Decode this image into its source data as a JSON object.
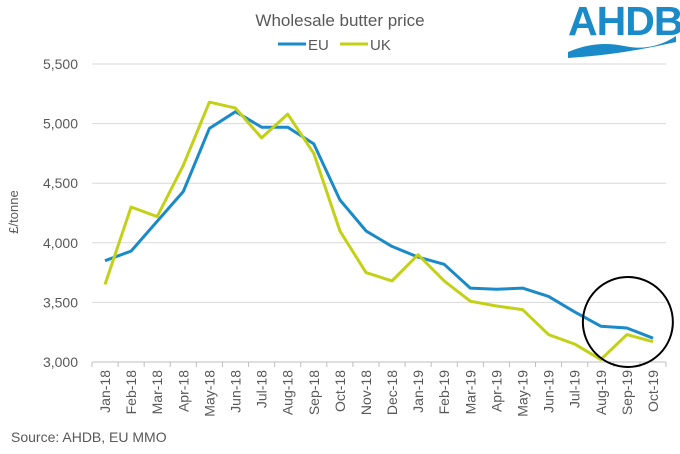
{
  "source_note": "Source: AHDB, EU MMO",
  "logo": {
    "text": "AHDB",
    "color": "#1a8bc8",
    "icon": "ahdb-wave-logo"
  },
  "chart_data": {
    "type": "line",
    "title": "Wholesale butter price",
    "xlabel": "",
    "ylabel": "£/tonne",
    "ylim": [
      3000,
      5500
    ],
    "yticks": [
      3000,
      3500,
      4000,
      4500,
      5000,
      5500
    ],
    "ytick_labels": [
      "3,000",
      "3,500",
      "4,000",
      "4,500",
      "5,000",
      "5,500"
    ],
    "grid": true,
    "legend_position": "top-center",
    "categories": [
      "Jan-18",
      "Feb-18",
      "Mar-18",
      "Apr-18",
      "May-18",
      "Jun-18",
      "Jul-18",
      "Aug-18",
      "Sep-18",
      "Oct-18",
      "Nov-18",
      "Dec-18",
      "Jan-19",
      "Feb-19",
      "Mar-19",
      "Apr-19",
      "May-19",
      "Jun-19",
      "Jul-19",
      "Aug-19",
      "Sep-19",
      "Oct-19"
    ],
    "series": [
      {
        "name": "EU",
        "color": "#1a8bc8",
        "values": [
          3850,
          3930,
          4180,
          4430,
          4960,
          5100,
          4970,
          4970,
          4830,
          4360,
          4100,
          3970,
          3880,
          3820,
          3620,
          3610,
          3620,
          3550,
          3420,
          3300,
          3285,
          3200
        ]
      },
      {
        "name": "UK",
        "color": "#c3d116",
        "values": [
          3650,
          4300,
          4220,
          4650,
          5180,
          5130,
          4880,
          5080,
          4750,
          4100,
          3750,
          3680,
          3900,
          3680,
          3510,
          3470,
          3440,
          3230,
          3150,
          3020,
          3230,
          3170
        ]
      }
    ],
    "annotations": [
      {
        "type": "circle",
        "highlight_categories": [
          "Aug-19",
          "Sep-19",
          "Oct-19"
        ]
      }
    ]
  }
}
